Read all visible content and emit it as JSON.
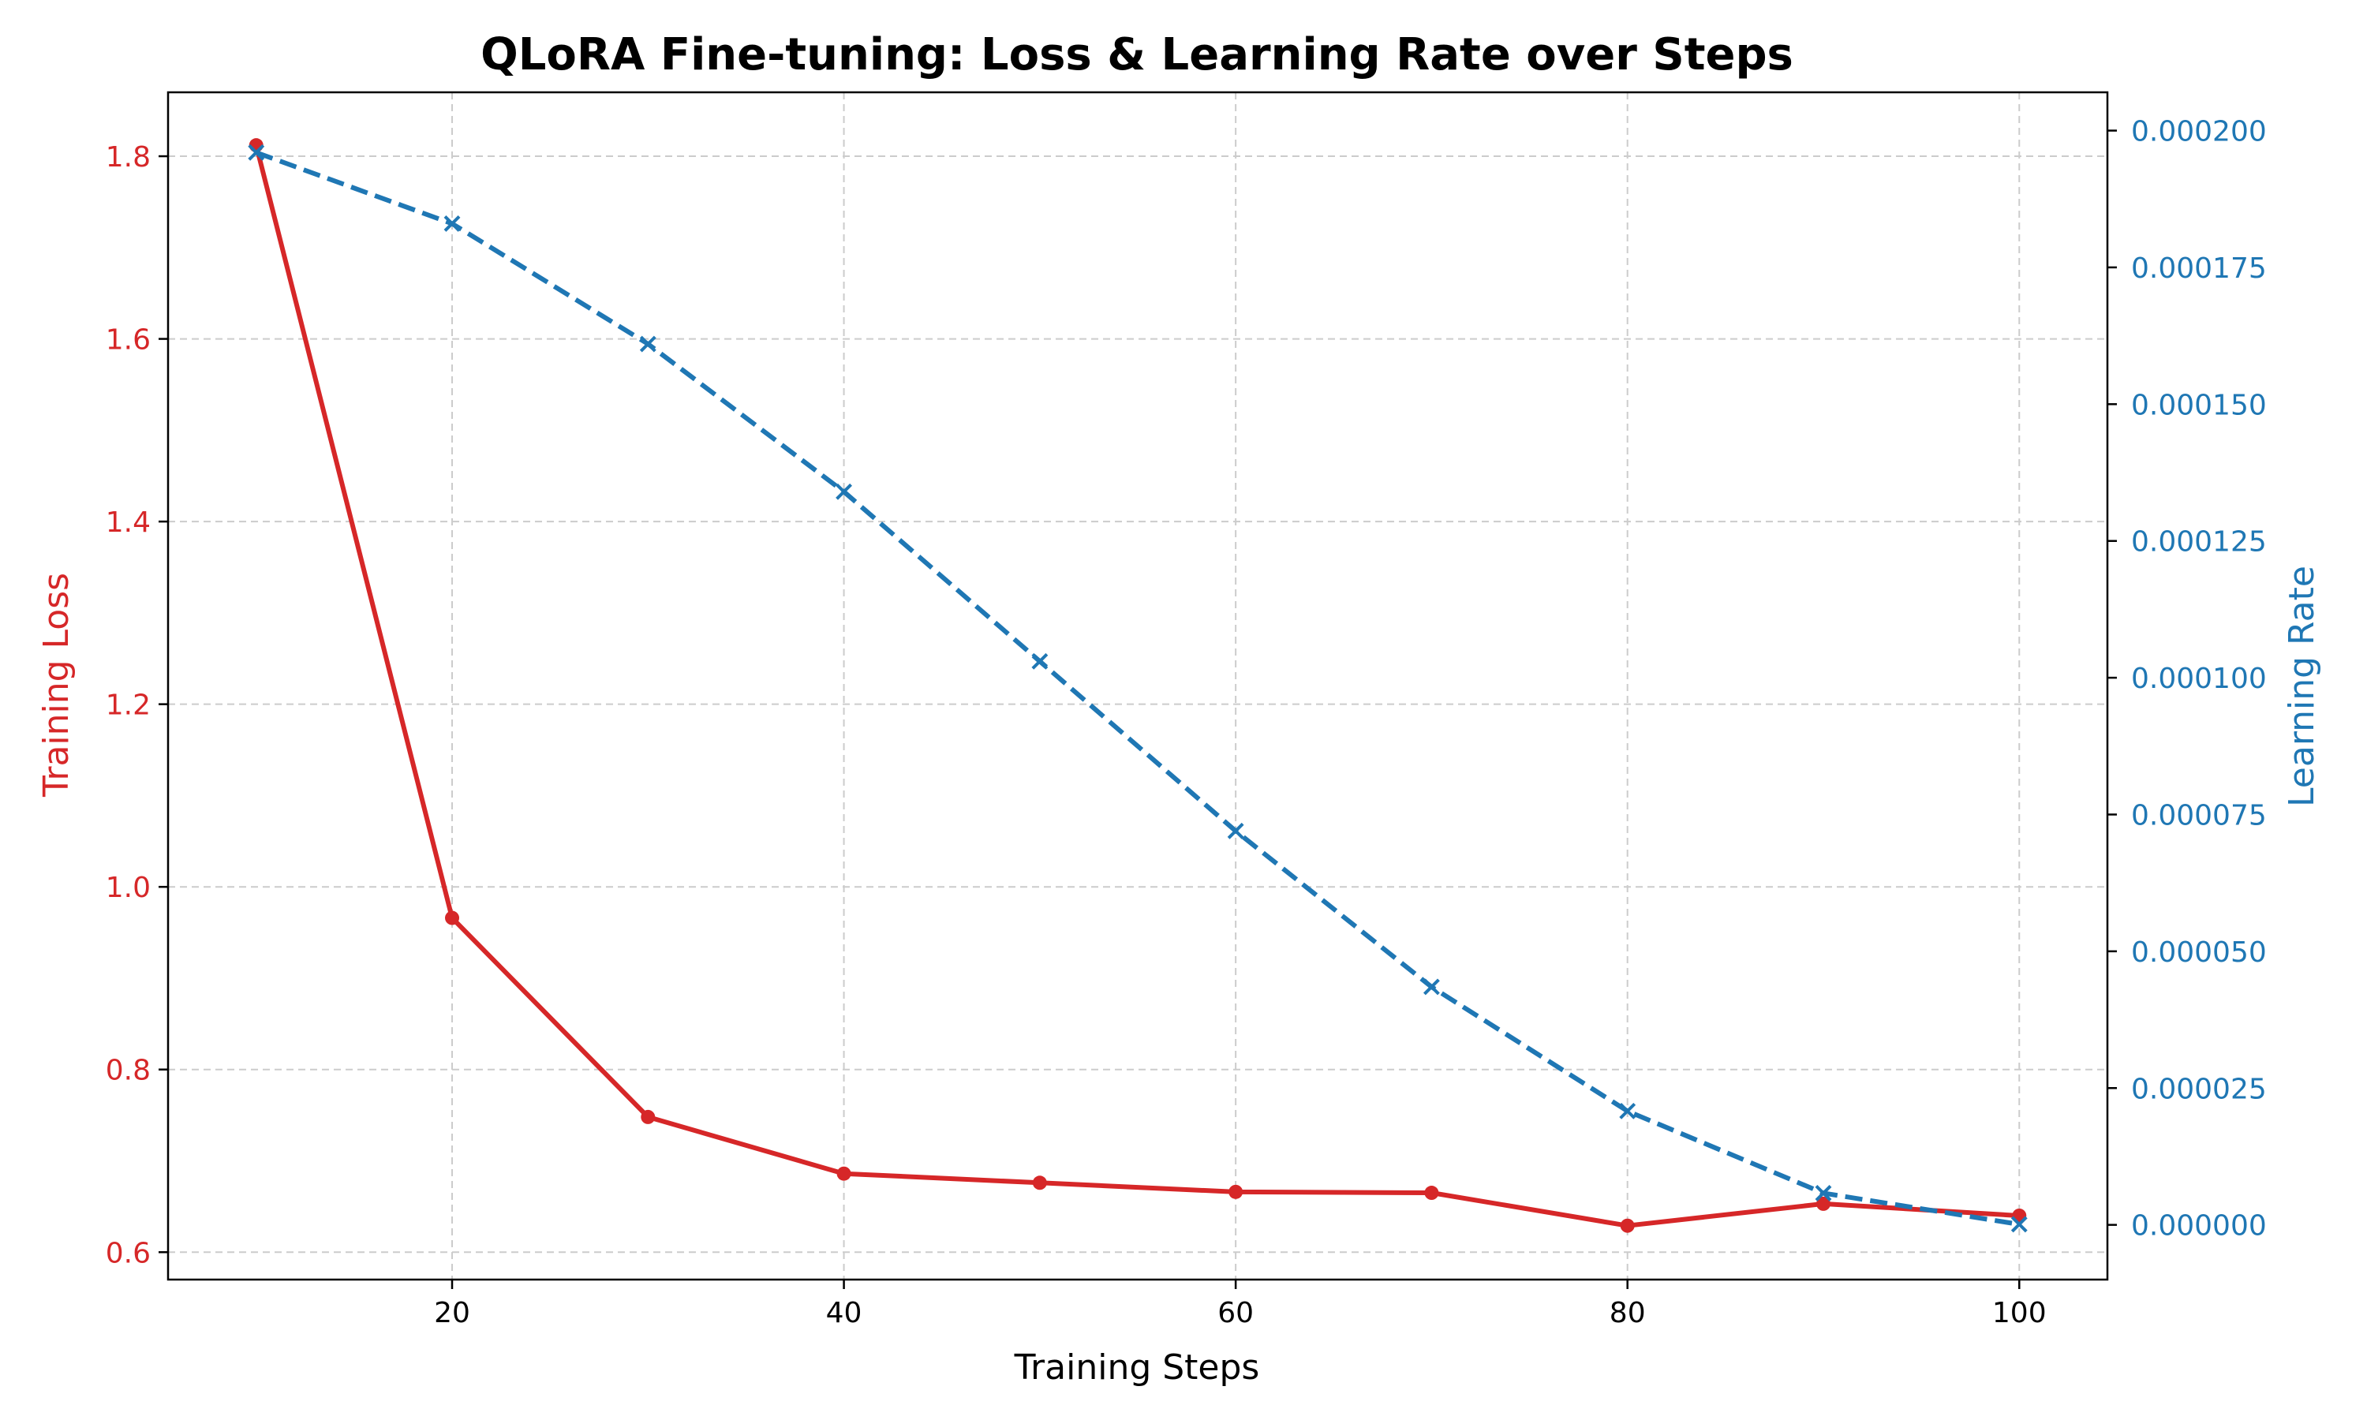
{
  "chart_data": {
    "type": "line",
    "title": "QLoRA Fine-tuning: Loss & Learning Rate over Steps",
    "xlabel": "Training Steps",
    "ylabel_left": "Training Loss",
    "ylabel_right": "Learning Rate",
    "xlim": [
      5.5,
      104.5
    ],
    "ylim_left": [
      0.57,
      1.87
    ],
    "ylim_right": [
      -1e-05,
      0.000207
    ],
    "x_ticks": [
      20,
      40,
      60,
      80,
      100
    ],
    "x_tick_labels": [
      "20",
      "40",
      "60",
      "80",
      "100"
    ],
    "y_left_ticks": [
      0.6,
      0.8,
      1.0,
      1.2,
      1.4,
      1.6,
      1.8
    ],
    "y_left_tick_labels": [
      "0.6",
      "0.8",
      "1.0",
      "1.2",
      "1.4",
      "1.6",
      "1.8"
    ],
    "y_right_ticks": [
      0,
      2.5e-05,
      5e-05,
      7.5e-05,
      0.0001,
      0.000125,
      0.00015,
      0.000175,
      0.0002
    ],
    "y_right_tick_labels": [
      "0.000000",
      "0.000025",
      "0.000050",
      "0.000075",
      "0.000100",
      "0.000125",
      "0.000150",
      "0.000175",
      "0.000200"
    ],
    "grid": true,
    "x": [
      10,
      20,
      30,
      40,
      50,
      60,
      70,
      80,
      90,
      100
    ],
    "series": [
      {
        "axis": "left",
        "values": [
          1.812,
          0.966,
          0.748,
          0.686,
          0.676,
          0.666,
          0.665,
          0.629,
          0.653,
          0.64
        ],
        "color": "#d62728",
        "style": "solid",
        "marker": "circle"
      },
      {
        "axis": "right",
        "values": [
          0.000196,
          0.000183,
          0.000161,
          0.000134,
          0.000103,
          7.2e-05,
          4.35e-05,
          2.08e-05,
          5.8e-06,
          1e-07
        ],
        "color": "#1f77b4",
        "style": "dashed",
        "marker": "x"
      }
    ],
    "colors": {
      "left_axis": "#d62728",
      "right_axis": "#1f77b4",
      "grid": "#cccccc",
      "axes": "#000000"
    }
  }
}
